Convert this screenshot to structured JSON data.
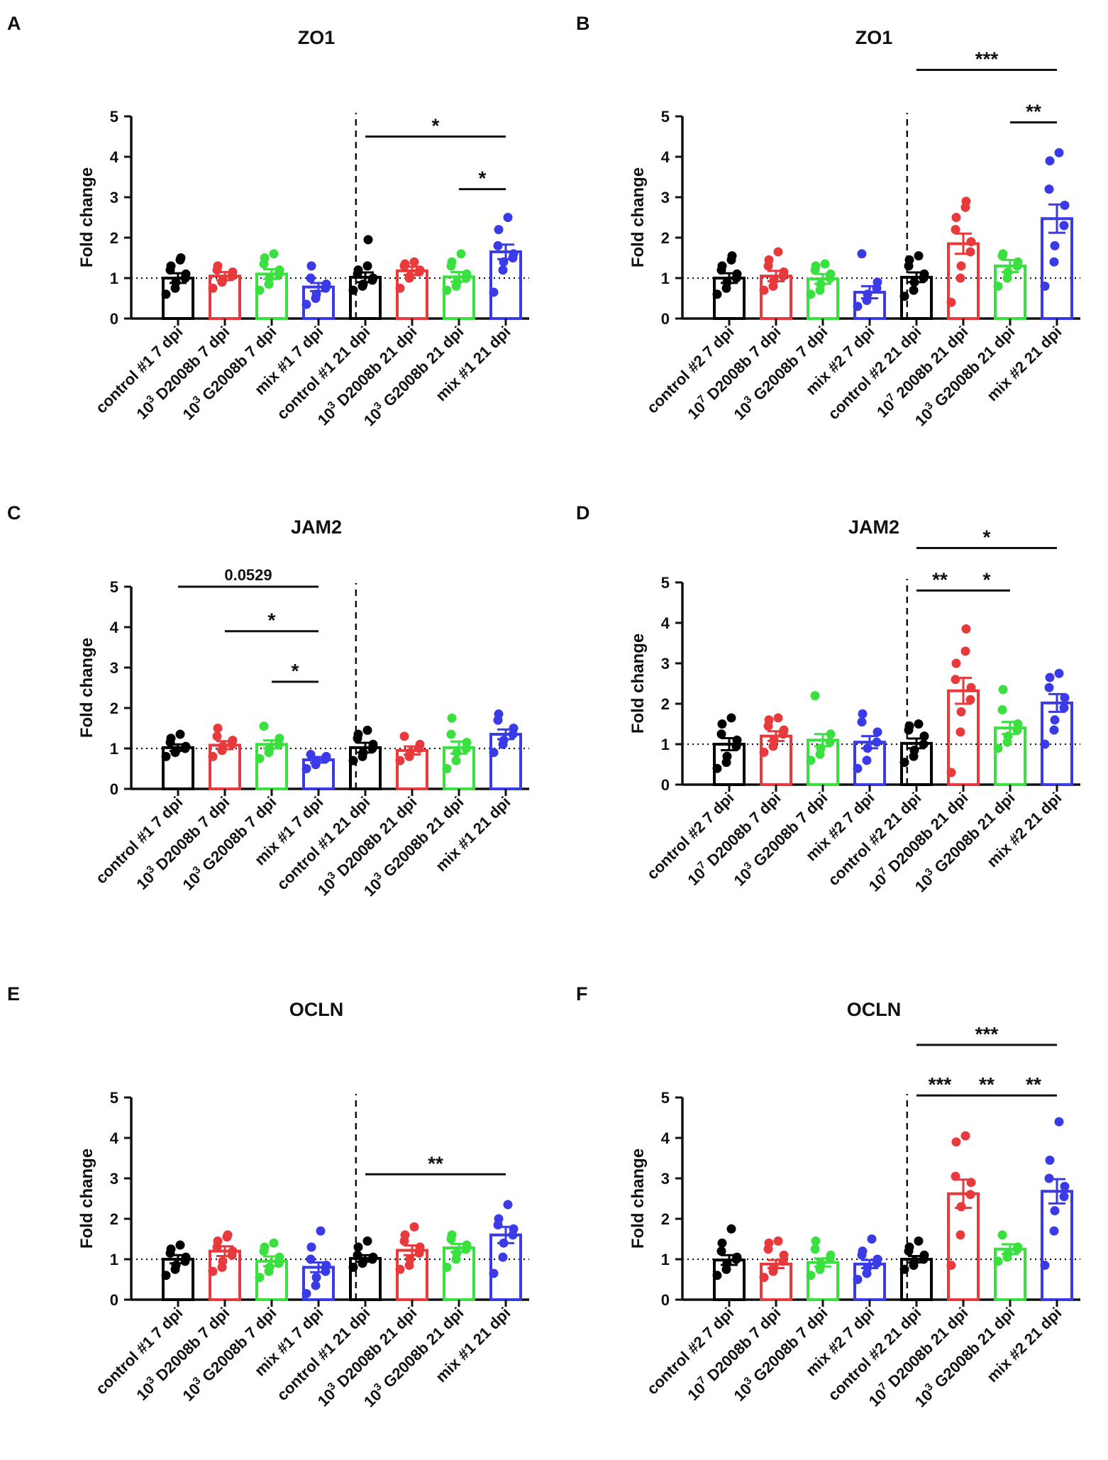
{
  "figure": {
    "bar_colors": [
      "#000000",
      "#e8393c",
      "#39e03f",
      "#3a3ae6"
    ]
  },
  "chart_data": [
    {
      "type": "bar",
      "panel_letter": "A",
      "title": "ZO1",
      "ylabel": "Fold change",
      "ylim": [
        0,
        5
      ],
      "yticks": [
        "0",
        "1",
        "2",
        "3",
        "4",
        "5"
      ],
      "categories": [
        {
          "pre": "",
          "sup": "",
          "text": "control #1 7 dpi"
        },
        {
          "pre": "10",
          "sup": "3",
          "text": " D2008b 7 dpi"
        },
        {
          "pre": "10",
          "sup": "3",
          "text": " G2008b 7 dpi"
        },
        {
          "pre": "",
          "sup": "",
          "text": "mix #1 7 dpi"
        },
        {
          "pre": "",
          "sup": "",
          "text": "control #1 21 dpi"
        },
        {
          "pre": "10",
          "sup": "3",
          "text": " D2008b 21 dpi"
        },
        {
          "pre": "10",
          "sup": "3",
          "text": " G2008b 21 dpi"
        },
        {
          "pre": "",
          "sup": "",
          "text": "mix #1 21 dpi"
        }
      ],
      "means": [
        1.0,
        1.05,
        1.1,
        0.78,
        1.02,
        1.18,
        1.03,
        1.65
      ],
      "sem": [
        0.12,
        0.1,
        0.12,
        0.1,
        0.12,
        0.1,
        0.12,
        0.18
      ],
      "points": [
        [
          0.6,
          0.75,
          0.9,
          1.0,
          1.1,
          1.2,
          1.3,
          1.45,
          1.5
        ],
        [
          0.75,
          0.9,
          0.95,
          1.05,
          1.15,
          1.2,
          1.3
        ],
        [
          0.7,
          0.85,
          1.0,
          1.1,
          1.2,
          1.35,
          1.5,
          1.6
        ],
        [
          0.35,
          0.5,
          0.6,
          0.75,
          0.85,
          1.0,
          1.3
        ],
        [
          0.7,
          0.8,
          0.85,
          0.95,
          1.0,
          1.1,
          1.2,
          1.3,
          1.95
        ],
        [
          0.75,
          1.0,
          1.05,
          1.15,
          1.2,
          1.3,
          1.35,
          1.4
        ],
        [
          0.7,
          0.8,
          0.9,
          1.0,
          1.1,
          1.3,
          1.4,
          1.6
        ],
        [
          0.65,
          1.2,
          1.4,
          1.5,
          1.6,
          1.8,
          2.2,
          2.5
        ]
      ],
      "divider_after": 4,
      "significance": [
        {
          "from": 5,
          "to": 8,
          "y": 4.5,
          "label": "*"
        },
        {
          "from": 7,
          "to": 8,
          "y": 3.2,
          "label": "*"
        }
      ]
    },
    {
      "type": "bar",
      "panel_letter": "B",
      "title": "ZO1",
      "ylabel": "Fold change",
      "ylim": [
        0,
        5
      ],
      "yticks": [
        "0",
        "1",
        "2",
        "3",
        "4",
        "5"
      ],
      "categories": [
        {
          "pre": "",
          "sup": "",
          "text": "control #2 7 dpi"
        },
        {
          "pre": "10",
          "sup": "7",
          "text": " D2008b 7 dpi"
        },
        {
          "pre": "10",
          "sup": "3",
          "text": " G2008b 7 dpi"
        },
        {
          "pre": "",
          "sup": "",
          "text": "mix #2 7 dpi"
        },
        {
          "pre": "",
          "sup": "",
          "text": "control #2 21 dpi"
        },
        {
          "pre": "10",
          "sup": "7",
          "text": " 2008b 21 dpi"
        },
        {
          "pre": "10",
          "sup": "3",
          "text": " G2008b 21 dpi"
        },
        {
          "pre": "",
          "sup": "",
          "text": "mix #2 21 dpi"
        }
      ],
      "means": [
        1.0,
        1.05,
        0.98,
        0.65,
        1.02,
        1.85,
        1.3,
        2.47
      ],
      "sem": [
        0.12,
        0.13,
        0.12,
        0.15,
        0.12,
        0.25,
        0.15,
        0.35
      ],
      "points": [
        [
          0.6,
          0.75,
          0.9,
          1.0,
          1.1,
          1.2,
          1.3,
          1.45,
          1.55
        ],
        [
          0.7,
          0.8,
          0.95,
          1.05,
          1.15,
          1.3,
          1.45,
          1.65
        ],
        [
          0.6,
          0.7,
          0.85,
          1.0,
          1.1,
          1.2,
          1.3,
          1.35
        ],
        [
          0.3,
          0.45,
          0.6,
          0.75,
          0.9,
          1.6
        ],
        [
          0.55,
          0.7,
          0.9,
          1.0,
          1.1,
          1.3,
          1.45,
          1.55
        ],
        [
          0.4,
          1.0,
          1.3,
          1.65,
          1.9,
          2.2,
          2.5,
          2.75,
          2.9
        ],
        [
          0.8,
          1.0,
          1.15,
          1.3,
          1.4,
          1.55,
          1.6
        ],
        [
          0.8,
          1.4,
          1.8,
          2.3,
          2.8,
          3.2,
          3.9,
          4.1
        ]
      ],
      "divider_after": 4,
      "significance": [
        {
          "from": 5,
          "to": 8,
          "y": 6.15,
          "label": "***"
        },
        {
          "from": 7,
          "to": 8,
          "y": 4.85,
          "label": "**"
        }
      ]
    },
    {
      "type": "bar",
      "panel_letter": "C",
      "title": "JAM2",
      "ylabel": "Fold change",
      "ylim": [
        0,
        5
      ],
      "yticks": [
        "0",
        "1",
        "2",
        "3",
        "4",
        "5"
      ],
      "categories": [
        {
          "pre": "",
          "sup": "",
          "text": "control #1 7 dpi"
        },
        {
          "pre": "10",
          "sup": "3",
          "text": " D2008b 7 dpi"
        },
        {
          "pre": "10",
          "sup": "3",
          "text": " G2008b 7 dpi"
        },
        {
          "pre": "",
          "sup": "",
          "text": "mix #1 7 dpi"
        },
        {
          "pre": "",
          "sup": "",
          "text": "control #1 21 dpi"
        },
        {
          "pre": "10",
          "sup": "3",
          "text": " D2008b 21 dpi"
        },
        {
          "pre": "10",
          "sup": "3",
          "text": " G2008b 21 dpi"
        },
        {
          "pre": "",
          "sup": "",
          "text": "mix #1 21 dpi"
        }
      ],
      "means": [
        1.02,
        1.08,
        1.1,
        0.72,
        1.02,
        0.95,
        1.02,
        1.35
      ],
      "sem": [
        0.08,
        0.1,
        0.1,
        0.07,
        0.12,
        0.1,
        0.15,
        0.12
      ],
      "points": [
        [
          0.8,
          0.9,
          0.95,
          1.0,
          1.05,
          1.15,
          1.25,
          1.35
        ],
        [
          0.8,
          0.95,
          1.05,
          1.1,
          1.2,
          1.3,
          1.5
        ],
        [
          0.75,
          0.9,
          1.0,
          1.1,
          1.25,
          1.55
        ],
        [
          0.5,
          0.6,
          0.7,
          0.75,
          0.8,
          0.85
        ],
        [
          0.7,
          0.8,
          0.9,
          1.0,
          1.1,
          1.25,
          1.35,
          1.45
        ],
        [
          0.7,
          0.8,
          0.9,
          1.0,
          1.1,
          1.3
        ],
        [
          0.5,
          0.7,
          0.9,
          1.0,
          1.15,
          1.35,
          1.75
        ],
        [
          0.9,
          1.1,
          1.2,
          1.35,
          1.5,
          1.7,
          1.85
        ]
      ],
      "divider_after": 4,
      "significance": [
        {
          "from": 1,
          "to": 4,
          "y": 5.0,
          "label": "0.0529"
        },
        {
          "from": 2,
          "to": 4,
          "y": 3.9,
          "label": "*"
        },
        {
          "from": 3,
          "to": 4,
          "y": 2.65,
          "label": "*"
        }
      ]
    },
    {
      "type": "bar",
      "panel_letter": "D",
      "title": "JAM2",
      "ylabel": "Fold change",
      "ylim": [
        0,
        5
      ],
      "yticks": [
        "0",
        "1",
        "2",
        "3",
        "4",
        "5"
      ],
      "categories": [
        {
          "pre": "",
          "sup": "",
          "text": "control #2 7 dpi"
        },
        {
          "pre": "10",
          "sup": "7",
          "text": " D2008b 7 dpi"
        },
        {
          "pre": "10",
          "sup": "3",
          "text": " G2008b 7 dpi"
        },
        {
          "pre": "",
          "sup": "",
          "text": "mix #2 7 dpi"
        },
        {
          "pre": "",
          "sup": "",
          "text": "control #2 21 dpi"
        },
        {
          "pre": "10",
          "sup": "7",
          "text": " D2008b 21 dpi"
        },
        {
          "pre": "10",
          "sup": "3",
          "text": " G2008b 21 dpi"
        },
        {
          "pre": "",
          "sup": "",
          "text": "mix #2 21 dpi"
        }
      ],
      "means": [
        1.0,
        1.2,
        1.1,
        1.05,
        1.02,
        2.32,
        1.4,
        2.02
      ],
      "sem": [
        0.15,
        0.12,
        0.15,
        0.15,
        0.12,
        0.32,
        0.15,
        0.22
      ],
      "points": [
        [
          0.4,
          0.55,
          0.7,
          0.95,
          1.1,
          1.25,
          1.5,
          1.65
        ],
        [
          0.8,
          0.95,
          1.1,
          1.25,
          1.35,
          1.45,
          1.6,
          1.65
        ],
        [
          0.6,
          0.75,
          0.9,
          1.05,
          1.25,
          2.2
        ],
        [
          0.4,
          0.6,
          0.9,
          1.05,
          1.3,
          1.55,
          1.75
        ],
        [
          0.55,
          0.7,
          0.85,
          1.0,
          1.2,
          1.35,
          1.45,
          1.5
        ],
        [
          0.3,
          1.3,
          1.8,
          2.1,
          2.4,
          2.6,
          3.0,
          3.3,
          3.85
        ],
        [
          0.9,
          1.05,
          1.2,
          1.35,
          1.5,
          1.85,
          2.35
        ],
        [
          1.0,
          1.35,
          1.6,
          1.9,
          2.15,
          2.4,
          2.65,
          2.75
        ]
      ],
      "divider_after": 4,
      "significance": [
        {
          "from": 5,
          "to": 8,
          "y": 5.85,
          "label": "*"
        },
        {
          "from": 5,
          "to": 6,
          "y": 4.8,
          "label": "**"
        },
        {
          "from": 6,
          "to": 7,
          "y": 4.8,
          "label": "*"
        }
      ]
    },
    {
      "type": "bar",
      "panel_letter": "E",
      "title": "OCLN",
      "ylabel": "Fold change",
      "ylim": [
        0,
        5
      ],
      "yticks": [
        "0",
        "1",
        "2",
        "3",
        "4",
        "5"
      ],
      "categories": [
        {
          "pre": "",
          "sup": "",
          "text": "control #1 7 dpi"
        },
        {
          "pre": "10",
          "sup": "3",
          "text": " D2008b 7 dpi"
        },
        {
          "pre": "10",
          "sup": "3",
          "text": " G2008b 7 dpi"
        },
        {
          "pre": "",
          "sup": "",
          "text": "mix #1 7 dpi"
        },
        {
          "pre": "",
          "sup": "",
          "text": "control #1 21 dpi"
        },
        {
          "pre": "10",
          "sup": "3",
          "text": " D2008b 21 dpi"
        },
        {
          "pre": "10",
          "sup": "3",
          "text": " G2008b 21 dpi"
        },
        {
          "pre": "",
          "sup": "",
          "text": "mix #1 21 dpi"
        }
      ],
      "means": [
        1.0,
        1.2,
        0.95,
        0.8,
        1.02,
        1.22,
        1.28,
        1.6
      ],
      "sem": [
        0.1,
        0.12,
        0.12,
        0.12,
        0.08,
        0.12,
        0.1,
        0.2
      ],
      "points": [
        [
          0.6,
          0.75,
          0.85,
          0.95,
          1.05,
          1.15,
          1.25,
          1.35
        ],
        [
          0.7,
          0.8,
          0.95,
          1.1,
          1.2,
          1.3,
          1.45,
          1.55,
          1.6
        ],
        [
          0.55,
          0.7,
          0.8,
          0.9,
          1.05,
          1.2,
          1.3,
          1.4
        ],
        [
          0.15,
          0.35,
          0.55,
          0.7,
          0.85,
          1.0,
          1.3,
          1.7
        ],
        [
          0.8,
          0.9,
          0.95,
          1.0,
          1.05,
          1.1,
          1.3,
          1.45
        ],
        [
          0.75,
          0.85,
          1.0,
          1.15,
          1.3,
          1.45,
          1.6,
          1.8
        ],
        [
          0.8,
          1.0,
          1.15,
          1.25,
          1.35,
          1.5,
          1.6
        ],
        [
          0.65,
          1.05,
          1.4,
          1.6,
          1.75,
          1.85,
          2.0,
          2.35
        ]
      ],
      "divider_after": 4,
      "significance": [
        {
          "from": 5,
          "to": 8,
          "y": 3.1,
          "label": "**"
        }
      ]
    },
    {
      "type": "bar",
      "panel_letter": "F",
      "title": "OCLN",
      "ylabel": "Fold change",
      "ylim": [
        0,
        5
      ],
      "yticks": [
        "0",
        "1",
        "2",
        "3",
        "4",
        "5"
      ],
      "categories": [
        {
          "pre": "",
          "sup": "",
          "text": "control #2 7 dpi"
        },
        {
          "pre": "10",
          "sup": "7",
          "text": " D2008b 7 dpi"
        },
        {
          "pre": "10",
          "sup": "3",
          "text": " G2008b 7 dpi"
        },
        {
          "pre": "",
          "sup": "",
          "text": "mix #2 7 dpi"
        },
        {
          "pre": "",
          "sup": "",
          "text": "control #2 21 dpi"
        },
        {
          "pre": "10",
          "sup": "7",
          "text": " D2008b 21 dpi"
        },
        {
          "pre": "10",
          "sup": "3",
          "text": " G2008b 21 dpi"
        },
        {
          "pre": "",
          "sup": "",
          "text": "mix #2 21 dpi"
        }
      ],
      "means": [
        0.98,
        0.88,
        0.92,
        0.88,
        1.0,
        2.62,
        1.25,
        2.68
      ],
      "sem": [
        0.12,
        0.1,
        0.1,
        0.1,
        0.08,
        0.35,
        0.12,
        0.3
      ],
      "points": [
        [
          0.6,
          0.75,
          0.9,
          1.0,
          1.05,
          1.2,
          1.4,
          1.75
        ],
        [
          0.55,
          0.7,
          0.8,
          0.95,
          1.1,
          1.25,
          1.4,
          1.45
        ],
        [
          0.6,
          0.75,
          0.9,
          1.0,
          1.1,
          1.25,
          1.45
        ],
        [
          0.5,
          0.65,
          0.8,
          0.9,
          1.0,
          1.1,
          1.2,
          1.5
        ],
        [
          0.75,
          0.85,
          0.95,
          1.0,
          1.1,
          1.2,
          1.3,
          1.45
        ],
        [
          0.85,
          1.6,
          2.3,
          2.6,
          2.9,
          3.05,
          3.9,
          4.05
        ],
        [
          0.95,
          1.05,
          1.15,
          1.25,
          1.3,
          1.6
        ],
        [
          0.85,
          1.7,
          2.2,
          2.55,
          2.8,
          3.0,
          3.45,
          4.4
        ]
      ],
      "divider_after": 4,
      "significance": [
        {
          "from": 5,
          "to": 8,
          "y": 6.3,
          "label": "***"
        },
        {
          "from": 5,
          "to": 6,
          "y": 5.05,
          "label": "***"
        },
        {
          "from": 6,
          "to": 7,
          "y": 5.05,
          "label": "**"
        },
        {
          "from": 7,
          "to": 8,
          "y": 5.05,
          "label": "**"
        }
      ]
    }
  ]
}
